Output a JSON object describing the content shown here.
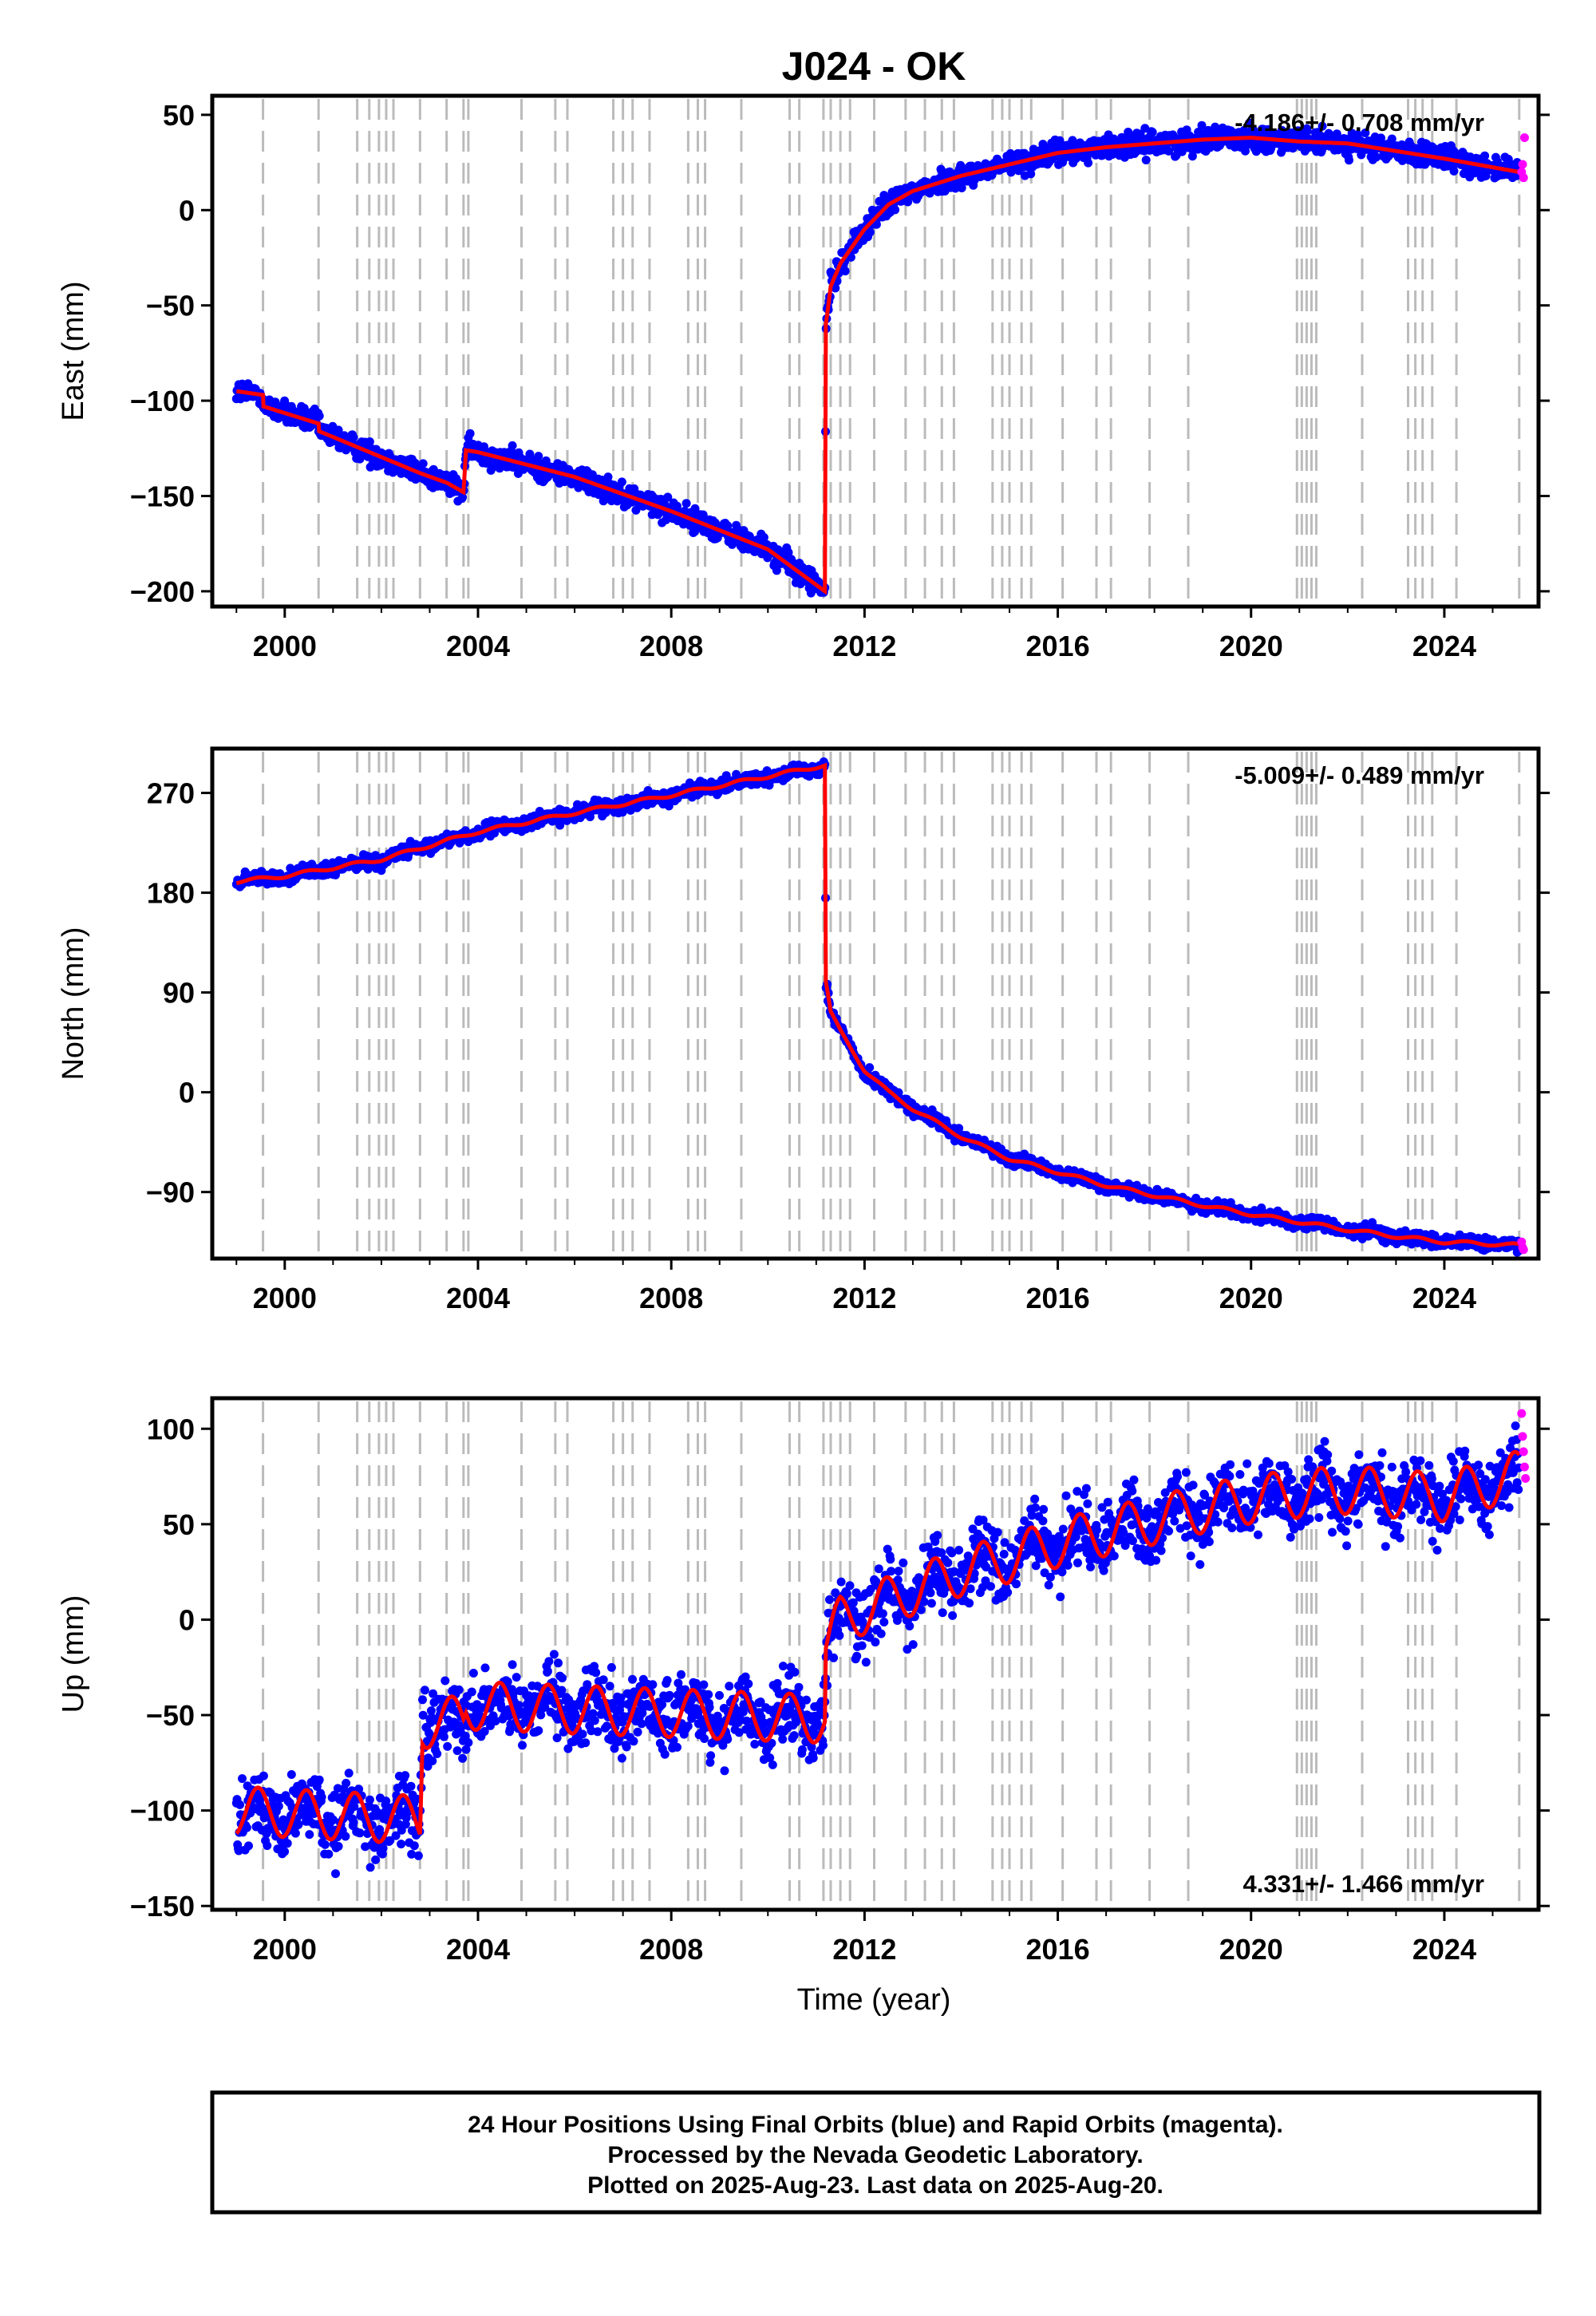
{
  "chart_data": {
    "type": "scatter",
    "title": "J024 - OK",
    "xlabel": "Time (year)",
    "xlim": [
      1998.5,
      2025.95
    ],
    "x_ticks": [
      2000,
      2004,
      2008,
      2012,
      2016,
      2020,
      2024
    ],
    "x_tick_labels": [
      "2000",
      "2004",
      "2008",
      "2012",
      "2016",
      "2020",
      "2024"
    ],
    "legend": "none",
    "colors": {
      "final": "#0000ff",
      "rapid": "#ff00ff",
      "model": "#ff0000",
      "event_lines": "#bbbbbb"
    },
    "event_lines": [
      1999.55,
      2000.7,
      2001.5,
      2001.75,
      2001.95,
      2002.1,
      2002.25,
      2002.8,
      2003.35,
      2003.7,
      2003.8,
      2004.9,
      2005.6,
      2005.85,
      2006.8,
      2007.0,
      2007.2,
      2007.55,
      2008.35,
      2008.55,
      2008.7,
      2009.45,
      2010.45,
      2010.65,
      2011.15,
      2011.3,
      2011.5,
      2011.7,
      2012.2,
      2012.85,
      2013.25,
      2013.6,
      2013.85,
      2014.65,
      2014.85,
      2015.0,
      2015.25,
      2015.45,
      2016.1,
      2016.8,
      2017.1,
      2017.9,
      2018.7,
      2020.95,
      2021.05,
      2021.15,
      2021.25,
      2021.35,
      2022.3,
      2023.25,
      2023.4,
      2023.55,
      2023.75,
      2024.25,
      2025.55
    ],
    "panels": [
      {
        "component": "East",
        "ylabel": "East (mm)",
        "ylim": [
          -208,
          60
        ],
        "y_ticks": [
          50,
          0,
          -50,
          -100,
          -150,
          -200
        ],
        "y_tick_labels": [
          "50",
          "0",
          "−50",
          "−100",
          "−150",
          "−200"
        ],
        "rate_label": "-4.186+/- 0.708 mm/yr",
        "rate_position": "top-right",
        "model_series": {
          "name": "",
          "points": [
            [
              1999.0,
              -95
            ],
            [
              1999.55,
              -97
            ],
            [
              1999.56,
              -103
            ],
            [
              2000.7,
              -112
            ],
            [
              2000.71,
              -116
            ],
            [
              2002.8,
              -138
            ],
            [
              2003.35,
              -143
            ],
            [
              2003.7,
              -148
            ],
            [
              2003.75,
              -126
            ],
            [
              2004.0,
              -127
            ],
            [
              2006.0,
              -140
            ],
            [
              2008.0,
              -158
            ],
            [
              2010.0,
              -178
            ],
            [
              2011.18,
              -200
            ],
            [
              2011.2,
              -60
            ],
            [
              2011.3,
              -40
            ],
            [
              2011.5,
              -28
            ],
            [
              2012.0,
              -10
            ],
            [
              2012.5,
              3
            ],
            [
              2013.0,
              10
            ],
            [
              2014.0,
              18
            ],
            [
              2015.0,
              24
            ],
            [
              2016.0,
              30
            ],
            [
              2017.0,
              33
            ],
            [
              2018.0,
              35
            ],
            [
              2019.0,
              37
            ],
            [
              2020.0,
              38
            ],
            [
              2021.0,
              36
            ],
            [
              2022.0,
              35
            ],
            [
              2023.0,
              31
            ],
            [
              2024.0,
              27
            ],
            [
              2025.55,
              20
            ]
          ]
        },
        "rapid_points": [
          [
            2025.6,
            20
          ],
          [
            2025.62,
            24
          ],
          [
            2025.64,
            17
          ],
          [
            2025.66,
            38
          ]
        ]
      },
      {
        "component": "North",
        "ylabel": "North (mm)",
        "ylim": [
          -150,
          310
        ],
        "y_ticks": [
          270,
          180,
          90,
          0,
          -90
        ],
        "y_tick_labels": [
          "270",
          "180",
          "90",
          "0",
          "−90"
        ],
        "rate_label": "-5.009+/- 0.489 mm/yr",
        "rate_position": "top-right",
        "model_series": {
          "name": "",
          "points": [
            [
              1999.0,
              190
            ],
            [
              2000.0,
              195
            ],
            [
              2002.0,
              210
            ],
            [
              2004.0,
              235
            ],
            [
              2006.0,
              252
            ],
            [
              2008.0,
              268
            ],
            [
              2010.0,
              285
            ],
            [
              2011.18,
              295
            ],
            [
              2011.2,
              100
            ],
            [
              2011.3,
              72
            ],
            [
              2011.5,
              55
            ],
            [
              2012.0,
              20
            ],
            [
              2012.5,
              0
            ],
            [
              2013.0,
              -15
            ],
            [
              2014.0,
              -40
            ],
            [
              2015.0,
              -60
            ],
            [
              2016.0,
              -72
            ],
            [
              2017.0,
              -84
            ],
            [
              2018.0,
              -93
            ],
            [
              2019.0,
              -102
            ],
            [
              2020.0,
              -110
            ],
            [
              2021.0,
              -117
            ],
            [
              2022.0,
              -124
            ],
            [
              2023.0,
              -130
            ],
            [
              2024.0,
              -135
            ],
            [
              2025.55,
              -138
            ]
          ]
        },
        "rapid_points": [
          [
            2025.6,
            -135
          ],
          [
            2025.62,
            -140
          ],
          [
            2025.64,
            -142
          ]
        ]
      },
      {
        "component": "Up",
        "ylabel": "Up (mm)",
        "ylim": [
          -152,
          116
        ],
        "y_ticks": [
          100,
          50,
          0,
          -50,
          -100,
          -150
        ],
        "y_tick_labels": [
          "100",
          "50",
          "0",
          "−50",
          "−100",
          "−150"
        ],
        "rate_label": "4.331+/- 1.466 mm/yr",
        "rate_position": "bottom-right",
        "model_series": {
          "name": "",
          "points": [
            [
              1999.0,
              -100
            ],
            [
              2002.8,
              -105
            ],
            [
              2002.85,
              -55
            ],
            [
              2003.7,
              -52
            ],
            [
              2003.75,
              -45
            ],
            [
              2011.18,
              -52
            ],
            [
              2011.2,
              -15
            ],
            [
              2011.5,
              0
            ],
            [
              2012.0,
              5
            ],
            [
              2013.0,
              15
            ],
            [
              2014.0,
              25
            ],
            [
              2015.0,
              32
            ],
            [
              2016.0,
              40
            ],
            [
              2017.0,
              46
            ],
            [
              2018.0,
              52
            ],
            [
              2019.0,
              58
            ],
            [
              2020.0,
              63
            ],
            [
              2021.0,
              66
            ],
            [
              2022.0,
              68
            ],
            [
              2023.0,
              66
            ],
            [
              2024.0,
              64
            ],
            [
              2025.55,
              76
            ]
          ]
        },
        "rapid_points": [
          [
            2025.6,
            108
          ],
          [
            2025.62,
            96
          ],
          [
            2025.64,
            88
          ],
          [
            2025.66,
            80
          ],
          [
            2025.68,
            74
          ]
        ]
      }
    ]
  },
  "caption": {
    "line1": "24 Hour Positions Using Final Orbits (blue) and Rapid Orbits (magenta).",
    "line2": "Processed by the Nevada Geodetic Laboratory.",
    "line3": "Plotted on 2025-Aug-23. Last data on 2025-Aug-20."
  }
}
